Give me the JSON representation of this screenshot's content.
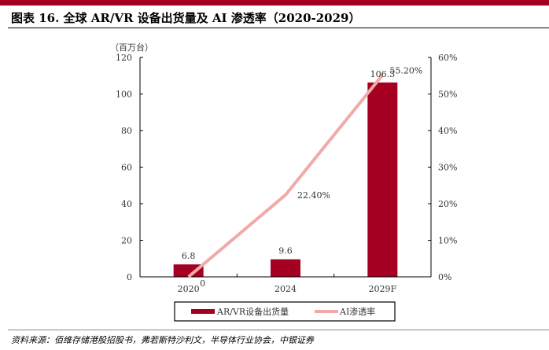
{
  "title": "图表 16. 全球 AR/VR 设备出货量及 AI 渗透率（2020-2029）",
  "source": "资料来源：佰维存储港股招股书，弗若斯特沙利文，半导体行业协会，中银证券",
  "colors": {
    "bar": "#a50021",
    "line": "#f0aaa8",
    "brand": "#a50021"
  },
  "chart_data": {
    "type": "bar+line",
    "categories": [
      "2020",
      "2024",
      "2029F"
    ],
    "y_unit_label": "（百万台）",
    "ylim": [
      0,
      120
    ],
    "yticks": [
      0,
      20,
      40,
      60,
      80,
      100,
      120
    ],
    "y2lim": [
      0,
      60
    ],
    "y2ticks": [
      "0%",
      "10%",
      "20%",
      "30%",
      "40%",
      "50%",
      "60%"
    ],
    "series": [
      {
        "name": "AR/VR设备出货量",
        "type": "bar",
        "values": [
          6.8,
          9.6,
          106.3
        ],
        "labels": [
          "6.8",
          "9.6",
          "106.3"
        ]
      },
      {
        "name": "AI渗透率",
        "type": "line",
        "axis": "right",
        "values": [
          0,
          22.4,
          55.2
        ],
        "labels": [
          "0",
          "22.40%",
          "55.20%"
        ]
      }
    ],
    "legend": "bottom"
  }
}
